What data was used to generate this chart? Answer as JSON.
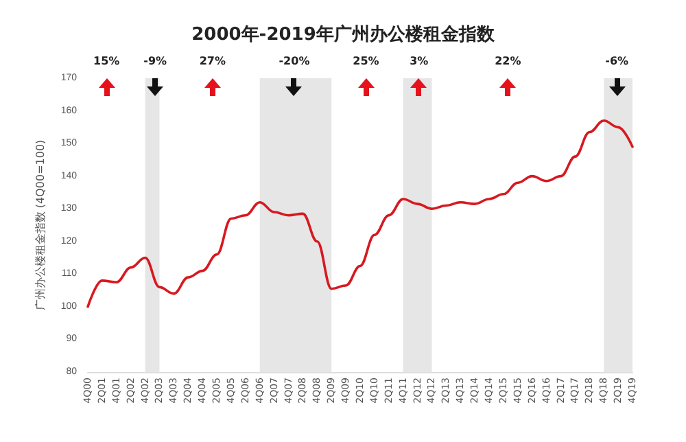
{
  "chart_data": {
    "type": "line",
    "title": "2000年-2019年广州办公楼租金指数",
    "ylabel": "广州办公楼租金指数 (4Q00=100)",
    "categories": [
      "4Q00",
      "2Q01",
      "4Q01",
      "2Q02",
      "4Q02",
      "2Q03",
      "4Q03",
      "2Q04",
      "4Q04",
      "2Q05",
      "4Q05",
      "2Q06",
      "4Q06",
      "2Q07",
      "4Q07",
      "2Q08",
      "4Q08",
      "2Q09",
      "4Q09",
      "2Q10",
      "4Q10",
      "2Q11",
      "4Q11",
      "2Q12",
      "4Q12",
      "2Q13",
      "4Q13",
      "2Q14",
      "4Q14",
      "2Q15",
      "4Q15",
      "2Q16",
      "4Q16",
      "2Q17",
      "4Q17",
      "2Q18",
      "4Q18",
      "2Q19",
      "4Q19"
    ],
    "series": [
      {
        "color": "#d7191f",
        "values": [
          100,
          108,
          107.5,
          112,
          115,
          106,
          104,
          109,
          111,
          116,
          127,
          128,
          132,
          129,
          128,
          128.5,
          120,
          105.5,
          106.5,
          112.5,
          122,
          128,
          133,
          131.5,
          130,
          131,
          132,
          131.5,
          133,
          134.5,
          138,
          140,
          138.5,
          140,
          146,
          153.5,
          157,
          155,
          149
        ]
      }
    ],
    "ylim": [
      80,
      170
    ],
    "yticks": [
      80,
      90,
      100,
      110,
      120,
      130,
      140,
      150,
      160,
      170
    ],
    "grid": false,
    "marker": "none",
    "line_style": "solid",
    "bands": [
      {
        "axis": "x",
        "from": "4Q02",
        "to": "2Q03",
        "color": "#e6e6e6"
      },
      {
        "axis": "x",
        "from": "4Q06",
        "to": "2Q09",
        "color": "#e6e6e6"
      },
      {
        "axis": "x",
        "from": "4Q11",
        "to": "4Q12",
        "color": "#e6e6e6"
      },
      {
        "axis": "x",
        "from": "4Q18",
        "to": "4Q19",
        "color": "#e6e6e6"
      }
    ],
    "annotations": [
      "15%",
      "-9%",
      "27%",
      "-20%",
      "25%",
      "3%",
      "22%",
      "-6%"
    ]
  }
}
